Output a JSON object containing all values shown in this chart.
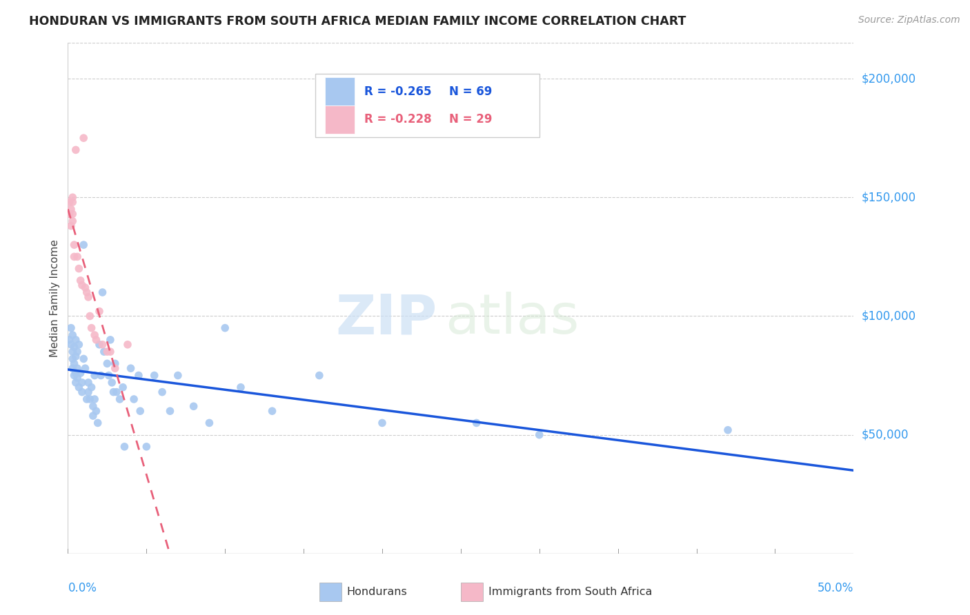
{
  "title": "HONDURAN VS IMMIGRANTS FROM SOUTH AFRICA MEDIAN FAMILY INCOME CORRELATION CHART",
  "source": "Source: ZipAtlas.com",
  "ylabel": "Median Family Income",
  "yticks": [
    50000,
    100000,
    150000,
    200000
  ],
  "ytick_labels": [
    "$50,000",
    "$100,000",
    "$150,000",
    "$200,000"
  ],
  "xlim": [
    0.0,
    0.5
  ],
  "ylim": [
    0,
    215000
  ],
  "honduran_color": "#a8c8f0",
  "honduran_line_color": "#1a56db",
  "sa_color": "#f5b8c8",
  "sa_line_color": "#e8607a",
  "legend_r1": "R = -0.265",
  "legend_n1": "N = 69",
  "legend_r2": "R = -0.228",
  "legend_n2": "N = 29",
  "watermark_zip": "ZIP",
  "watermark_atlas": "atlas",
  "honduran_x": [
    0.001,
    0.002,
    0.002,
    0.003,
    0.003,
    0.003,
    0.003,
    0.004,
    0.004,
    0.004,
    0.005,
    0.005,
    0.005,
    0.005,
    0.006,
    0.006,
    0.006,
    0.007,
    0.007,
    0.008,
    0.009,
    0.009,
    0.01,
    0.01,
    0.011,
    0.012,
    0.013,
    0.013,
    0.014,
    0.015,
    0.016,
    0.016,
    0.017,
    0.017,
    0.018,
    0.019,
    0.02,
    0.021,
    0.022,
    0.023,
    0.025,
    0.026,
    0.027,
    0.028,
    0.029,
    0.03,
    0.031,
    0.033,
    0.035,
    0.036,
    0.04,
    0.042,
    0.045,
    0.046,
    0.05,
    0.055,
    0.06,
    0.065,
    0.07,
    0.08,
    0.09,
    0.1,
    0.11,
    0.13,
    0.16,
    0.2,
    0.26,
    0.3,
    0.42
  ],
  "honduran_y": [
    90000,
    95000,
    88000,
    85000,
    92000,
    78000,
    82000,
    87000,
    80000,
    75000,
    83000,
    76000,
    90000,
    72000,
    85000,
    78000,
    74000,
    88000,
    70000,
    76000,
    72000,
    68000,
    130000,
    82000,
    78000,
    65000,
    72000,
    68000,
    65000,
    70000,
    62000,
    58000,
    75000,
    65000,
    60000,
    55000,
    88000,
    75000,
    110000,
    85000,
    80000,
    75000,
    90000,
    72000,
    68000,
    80000,
    68000,
    65000,
    70000,
    45000,
    78000,
    65000,
    75000,
    60000,
    45000,
    75000,
    68000,
    60000,
    75000,
    62000,
    55000,
    95000,
    70000,
    60000,
    75000,
    55000,
    55000,
    50000,
    52000
  ],
  "sa_x": [
    0.001,
    0.001,
    0.002,
    0.002,
    0.003,
    0.003,
    0.003,
    0.003,
    0.004,
    0.004,
    0.005,
    0.006,
    0.007,
    0.008,
    0.009,
    0.01,
    0.011,
    0.012,
    0.013,
    0.014,
    0.015,
    0.017,
    0.018,
    0.02,
    0.022,
    0.025,
    0.027,
    0.03,
    0.038
  ],
  "sa_y": [
    148000,
    143000,
    145000,
    138000,
    150000,
    148000,
    143000,
    140000,
    130000,
    125000,
    170000,
    125000,
    120000,
    115000,
    113000,
    175000,
    112000,
    110000,
    108000,
    100000,
    95000,
    92000,
    90000,
    102000,
    88000,
    85000,
    85000,
    78000,
    88000
  ]
}
